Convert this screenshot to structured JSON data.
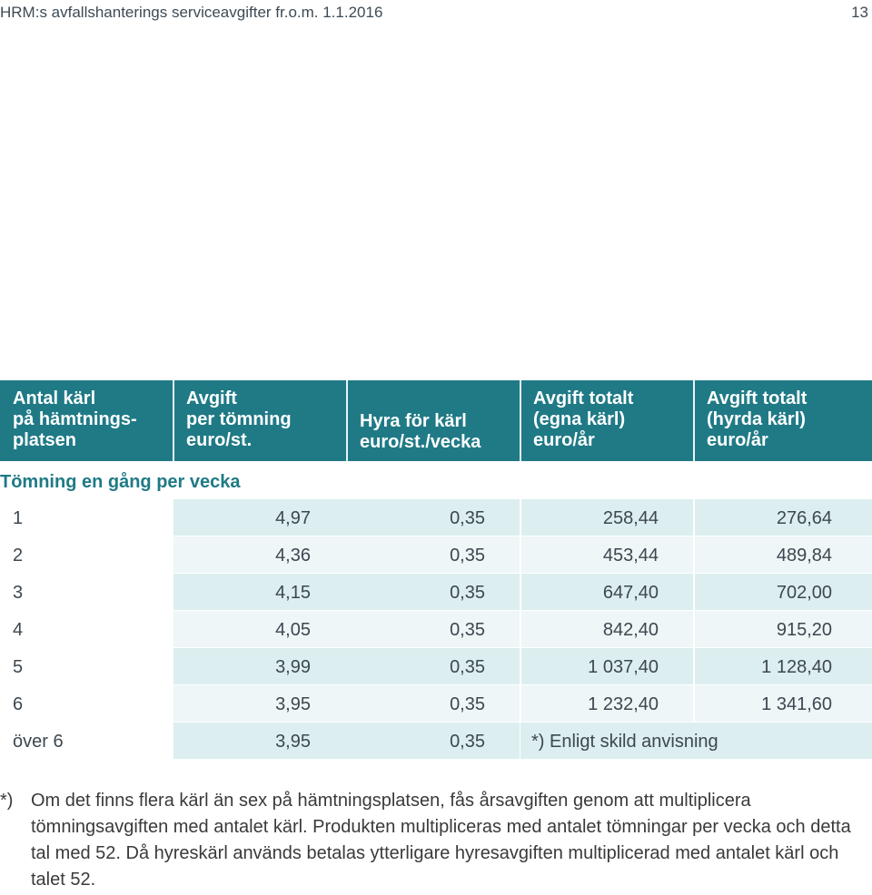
{
  "header": {
    "title": "HRM:s avfallshanterings serviceavgifter fr.o.m. 1.1.2016",
    "page_number": "13"
  },
  "table": {
    "columns": [
      "Antal kärl\npå hämtnings-\nplatsen",
      "Avgift\nper tömning\neuro/st.",
      "Hyra för kärl\neuro/st./vecka",
      "Avgift totalt\n(egna kärl)\neuro/år",
      "Avgift totalt\n(hyrda kärl)\neuro/år"
    ],
    "section_label": "Tömning en gång per vecka",
    "rows": [
      {
        "count": "1",
        "per_tomning": "4,97",
        "hyra": "0,35",
        "egna": "258,44",
        "hyrda": "276,64"
      },
      {
        "count": "2",
        "per_tomning": "4,36",
        "hyra": "0,35",
        "egna": "453,44",
        "hyrda": "489,84"
      },
      {
        "count": "3",
        "per_tomning": "4,15",
        "hyra": "0,35",
        "egna": "647,40",
        "hyrda": "702,00"
      },
      {
        "count": "4",
        "per_tomning": "4,05",
        "hyra": "0,35",
        "egna": "842,40",
        "hyrda": "915,20"
      },
      {
        "count": "5",
        "per_tomning": "3,99",
        "hyra": "0,35",
        "egna": "1 037,40",
        "hyrda": "1 128,40"
      },
      {
        "count": "6",
        "per_tomning": "3,95",
        "hyra": "0,35",
        "egna": "1 232,40",
        "hyrda": "1 341,60"
      }
    ],
    "last_row": {
      "count": "över 6",
      "per_tomning": "3,95",
      "hyra": "0,35",
      "note": "*) Enligt skild anvisning"
    }
  },
  "footnote": {
    "marker": "*)",
    "text": "Om det finns flera kärl än sex på hämtningsplatsen, fås årsavgiften genom att multiplicera tömningsavgiften med antalet kärl. Produkten multipliceras med antalet tömningar per vecka och detta tal med 52. Då hyreskärl används betalas ytterligare hyresavgiften multiplicerad med antalet kärl och talet 52."
  },
  "colors": {
    "header_bg": "#1f7a86",
    "row_dark": "#dceef0",
    "row_light": "#eef6f7",
    "section_text": "#1f7a86"
  }
}
